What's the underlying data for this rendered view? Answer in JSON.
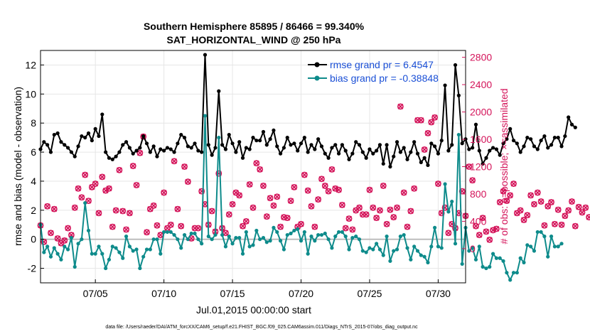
{
  "chart_data": {
    "type": "line",
    "title": "Southern Hemisphere 85895 / 86466 = 99.340%",
    "subtitle": "SAT_HORIZONTAL_WIND @ 250 hPa",
    "xlabel": "Jul.01,2015 00:00:00 start",
    "ylabel": "rmse and bias (model - observation)",
    "ylabel_right": "# of obs: o=possible; ×=assimilated",
    "footnote": "data file: /Users/raeder/DAI/ATM_forcXX/CAM6_setup/f.e21.FHIST_BGC.f09_025.CAM6assim.011/Diags_NTrS_2015-07/obs_diag_output.nc",
    "x_tick_labels": [
      "07/05",
      "07/10",
      "07/15",
      "07/20",
      "07/25",
      "07/30"
    ],
    "x_tick_days": [
      5,
      10,
      15,
      20,
      25,
      30
    ],
    "xlim_days": [
      1,
      32
    ],
    "ylim": [
      -3,
      13
    ],
    "y_ticks": [
      -2,
      0,
      2,
      4,
      6,
      8,
      10,
      12
    ],
    "y_tick_labels": [
      "-2",
      "0",
      "2",
      "4",
      "6",
      "8",
      "10",
      "12"
    ],
    "ylim_right": [
      -500,
      2900
    ],
    "y_ticks_right": [
      0,
      400,
      800,
      1200,
      1600,
      2000,
      2400,
      2800
    ],
    "y_tick_labels_right": [
      "0",
      "400",
      "800",
      "1200",
      "1600",
      "2000",
      "2400",
      "2800"
    ],
    "x_step_days": 0.25,
    "x_start_day": 1.0,
    "series": [
      {
        "name": "rmse",
        "legend": "rmse grand pr = 6.4547",
        "color": "#000000",
        "values": [
          6.2,
          6.7,
          6.5,
          6.0,
          7.2,
          7.3,
          6.7,
          6.5,
          6.3,
          6.0,
          5.7,
          6.4,
          7.1,
          7.0,
          7.3,
          6.8,
          7.6,
          7.1,
          8.6,
          6.0,
          5.6,
          5.5,
          5.7,
          6.0,
          6.5,
          6.7,
          6.3,
          5.9,
          6.1,
          6.3,
          7.1,
          6.6,
          6.0,
          6.4,
          5.7,
          6.2,
          6.1,
          6.3,
          6.2,
          6.0,
          6.6,
          7.2,
          7.0,
          6.4,
          6.3,
          6.6,
          6.1,
          6.0,
          12.7,
          6.5,
          5.8,
          6.3,
          10.2,
          6.5,
          6.2,
          7.2,
          6.6,
          6.0,
          6.7,
          5.6,
          6.3,
          6.2,
          7.0,
          6.8,
          6.8,
          7.4,
          6.5,
          6.9,
          7.5,
          6.4,
          5.9,
          6.3,
          7.0,
          6.5,
          6.6,
          6.1,
          6.6,
          7.0,
          6.0,
          6.5,
          6.2,
          6.9,
          6.4,
          5.9,
          5.6,
          6.3,
          6.5,
          5.9,
          6.5,
          6.1,
          5.5,
          5.9,
          6.7,
          6.5,
          6.0,
          5.6,
          6.2,
          5.9,
          6.1,
          6.5,
          5.2,
          6.5,
          5.0,
          5.7,
          6.7,
          6.0,
          6.3,
          5.5,
          6.0,
          6.7,
          5.9,
          5.3,
          5.6,
          5.1,
          6.6,
          6.4,
          5.9,
          6.8,
          10.6,
          6.1,
          6.5,
          12.0,
          9.9,
          6.6,
          6.9,
          6.2,
          6.3,
          7.9,
          6.1,
          5.2,
          5.6,
          6.1,
          6.3,
          6.2,
          5.8,
          6.6,
          6.9,
          7.6,
          6.8,
          6.6,
          6.0,
          6.4,
          7.0,
          6.9,
          6.4,
          6.2,
          6.8,
          7.1,
          6.3,
          6.5,
          7.0,
          7.0,
          6.4,
          7.1,
          8.4,
          7.9,
          7.7
        ],
        "ylim": [
          -3,
          13
        ]
      },
      {
        "name": "bias",
        "legend": "bias grand pr = -0.38848",
        "color": "#0e8b8b",
        "values": [
          1.0,
          -0.9,
          -0.5,
          -1.2,
          -0.6,
          -1.0,
          -1.4,
          -0.5,
          -0.7,
          0.1,
          -1.9,
          -0.3,
          0.0,
          2.5,
          0.6,
          -1.0,
          -1.0,
          -0.5,
          -1.0,
          -2.0,
          -1.4,
          -0.5,
          -0.6,
          -0.9,
          -1.3,
          0.2,
          -0.5,
          -0.8,
          -0.7,
          -2.0,
          -1.2,
          -0.7,
          -0.7,
          0.0,
          0.0,
          -1.0,
          0.5,
          0.5,
          0.5,
          0.3,
          0.0,
          -0.6,
          0.3,
          0.0,
          0.4,
          0.4,
          0.0,
          -0.3,
          8.5,
          0.2,
          0.0,
          0.3,
          7.0,
          0.3,
          -0.5,
          0.2,
          -0.3,
          0.1,
          0.1,
          -1.0,
          0.5,
          -0.5,
          -0.4,
          0.6,
          0.0,
          0.1,
          -0.2,
          -0.1,
          0.8,
          0.5,
          -0.1,
          -0.7,
          0.3,
          0.4,
          0.6,
          0.7,
          -0.1,
          0.5,
          -1.0,
          0.2,
          -0.1,
          0.3,
          0.3,
          0.4,
          0.0,
          -0.6,
          0.2,
          0.5,
          0.5,
          0.2,
          -0.7,
          0.1,
          0.2,
          0.0,
          -0.8,
          -0.9,
          -0.6,
          -0.7,
          -0.3,
          -0.7,
          -1.1,
          0.2,
          -1.5,
          -0.8,
          -0.7,
          0.2,
          0.3,
          -0.6,
          -1.4,
          -0.5,
          -0.8,
          -1.1,
          -1.2,
          -1.6,
          -0.5,
          0.8,
          -0.5,
          -0.6,
          3.8,
          1.9,
          2.6,
          -0.3,
          7.2,
          -1.7,
          0.8,
          -0.8,
          -0.6,
          -1.4,
          -0.5,
          -1.9,
          -2.0,
          -1.9,
          -1.0,
          -1.3,
          -1.3,
          -1.5,
          -2.3,
          -2.8,
          -2.3,
          -2.3,
          -1.3,
          -1.6,
          -0.4,
          -0.5,
          -0.8,
          0.5,
          0.5,
          0.2,
          -1.2,
          0.2,
          -0.5,
          -0.5,
          -0.3
        ],
        "ylim": [
          -3,
          13
        ]
      },
      {
        "name": "obs_possible",
        "marker": "circle",
        "color": "#d4145a",
        "axis": "right",
        "values": [
          340,
          100,
          620,
          230,
          580,
          150,
          80,
          120,
          300,
          200,
          600,
          880,
          750,
          1080,
          700,
          900,
          950,
          520,
          1050,
          850,
          880,
          320,
          560,
          1150,
          550,
          280,
          520,
          1210,
          930,
          1400,
          1640,
          240,
          580,
          630,
          340,
          200,
          820,
          300,
          350,
          1280,
          580,
          330,
          1200,
          980,
          150,
          300,
          300,
          840,
          650,
          350,
          550,
          250,
          1100,
          300,
          230,
          500,
          650,
          820,
          780,
          330,
          400,
          940,
          600,
          1250,
          1160,
          920,
          470,
          740,
          630,
          760,
          320,
          460,
          450,
          700,
          900,
          320,
          360,
          1080,
          850,
          620,
          320,
          720,
          1020,
          920,
          840,
          1160,
          880,
          860,
          640,
          300,
          440,
          280,
          560,
          600,
          500,
          500,
          860,
          600,
          450,
          560,
          920,
          360,
          570,
          460,
          600,
          2080,
          820,
          320,
          550,
          880,
          1880,
          1880,
          1450,
          1690,
          1850,
          1920,
          950,
          520,
          600,
          230,
          360,
          300,
          520,
          840,
          480,
          1200,
          1000,
          330,
          200,
          450,
          250,
          130,
          270,
          290,
          680,
          840,
          700,
          780,
          950,
          520,
          560,
          420,
          490,
          780,
          650,
          820,
          690,
          340,
          620,
          680,
          360,
          570,
          350,
          480,
          560,
          690,
          330,
          610,
          530,
          600,
          460
        ],
        "ylim": [
          -500,
          2900
        ]
      },
      {
        "name": "obs_assimilated",
        "marker": "x",
        "color": "#d4145a",
        "axis": "right",
        "values": [
          340,
          100,
          620,
          230,
          580,
          150,
          80,
          120,
          300,
          200,
          600,
          880,
          750,
          1080,
          700,
          900,
          950,
          520,
          1050,
          850,
          880,
          320,
          560,
          1150,
          550,
          280,
          520,
          1210,
          930,
          1400,
          1640,
          240,
          580,
          630,
          340,
          200,
          820,
          300,
          350,
          1280,
          580,
          330,
          1200,
          980,
          150,
          300,
          300,
          840,
          650,
          350,
          550,
          250,
          1100,
          300,
          230,
          500,
          650,
          820,
          780,
          330,
          400,
          940,
          600,
          1250,
          1160,
          920,
          470,
          740,
          630,
          760,
          320,
          460,
          450,
          700,
          900,
          320,
          360,
          1080,
          850,
          620,
          320,
          720,
          1020,
          920,
          840,
          1160,
          880,
          860,
          640,
          300,
          440,
          280,
          560,
          600,
          500,
          500,
          860,
          600,
          450,
          560,
          920,
          360,
          570,
          460,
          600,
          2080,
          820,
          320,
          550,
          880,
          1880,
          1880,
          1450,
          1690,
          1850,
          1920,
          950,
          520,
          600,
          230,
          360,
          300,
          520,
          840,
          480,
          1200,
          1000,
          330,
          200,
          450,
          250,
          130,
          270,
          290,
          680,
          840,
          700,
          780,
          950,
          520,
          560,
          420,
          490,
          780,
          650,
          820,
          690,
          340,
          620,
          680,
          360,
          570,
          350,
          480,
          560,
          690,
          330,
          610,
          530,
          600,
          460
        ],
        "ylim": [
          -500,
          2900
        ]
      }
    ]
  }
}
